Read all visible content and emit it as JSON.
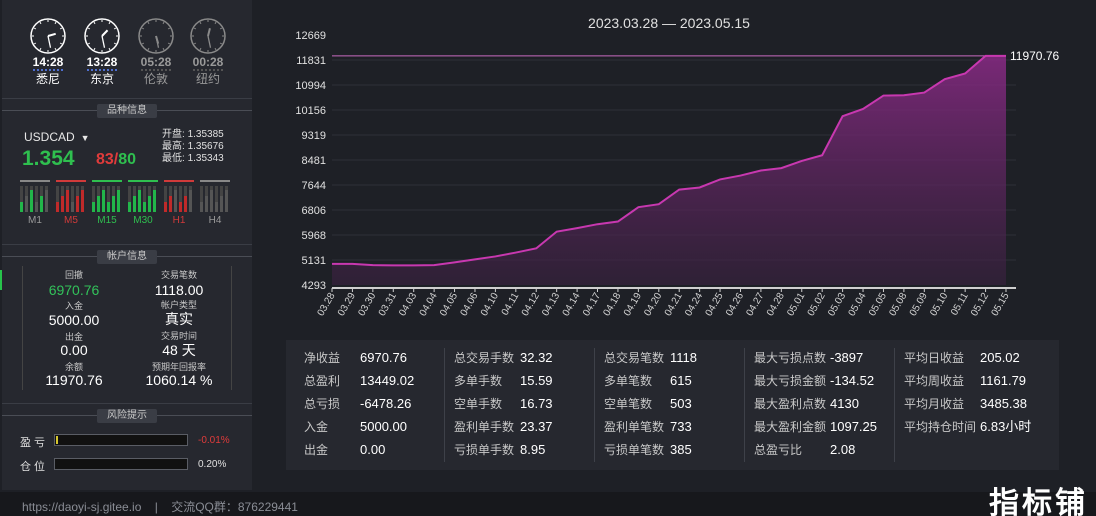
{
  "clocks": [
    {
      "time": "14:28",
      "city": "悉尼",
      "active": true
    },
    {
      "time": "13:28",
      "city": "东京",
      "active": true
    },
    {
      "time": "05:28",
      "city": "伦敦",
      "active": false
    },
    {
      "time": "00:28",
      "city": "纽约",
      "active": false
    }
  ],
  "sections": {
    "instrument": "品种信息",
    "account": "帐户信息",
    "risk": "风险提示"
  },
  "instrument": {
    "symbol": "USDCAD",
    "price_main": "1.354",
    "price_small_a": "83",
    "price_slash": "/",
    "price_small_b": "80",
    "open_label": "开盘:",
    "open": "1.35385",
    "high_label": "最高:",
    "high": "1.35676",
    "low_label": "最低:",
    "low": "1.35343",
    "timeframes": [
      {
        "label": "M1",
        "color": "#9a9a9a"
      },
      {
        "label": "M5",
        "color": "#d03a3a"
      },
      {
        "label": "M15",
        "color": "#2fbf4f"
      },
      {
        "label": "M30",
        "color": "#2fbf4f"
      },
      {
        "label": "H1",
        "color": "#d03a3a"
      },
      {
        "label": "H4",
        "color": "#9a9a9a"
      }
    ]
  },
  "account": {
    "drawdown_label": "回撤",
    "drawdown": "6970.76",
    "trades_label": "交易笔数",
    "trades": "1118.00",
    "deposit_label": "入金",
    "deposit": "5000.00",
    "type_label": "帐户类型",
    "type": "真实",
    "withdraw_label": "出金",
    "withdraw": "0.00",
    "time_label": "交易时间",
    "time": "48 天",
    "balance_label": "余额",
    "balance": "11970.76",
    "annual_label": "预期年回报率",
    "annual": "1060.14 %"
  },
  "risk": {
    "profit_label": "盈 亏",
    "profit_value": "-0.01%",
    "profit_color": "#e03b3b",
    "position_label": "仓 位",
    "position_value": "0.20%",
    "position_color": "#e0e0e0"
  },
  "chart_data": {
    "type": "area",
    "title": "2023.03.28 — 2023.05.15",
    "y_ticks": [
      "12669",
      "11831",
      "10994",
      "10156",
      "9319",
      "8481",
      "7644",
      "6806",
      "5968",
      "5131",
      "4293"
    ],
    "ylim": [
      4293,
      12669
    ],
    "last_value_label": "11970.76",
    "reference_line": 11970.76,
    "x_labels": [
      "03.28",
      "03.29",
      "03.30",
      "03.31",
      "04.03",
      "04.04",
      "04.05",
      "04.06",
      "04.10",
      "04.11",
      "04.12",
      "04.13",
      "04.14",
      "04.17",
      "04.18",
      "04.19",
      "04.20",
      "04.21",
      "04.24",
      "04.25",
      "04.26",
      "04.27",
      "04.28",
      "05.01",
      "05.02",
      "05.03",
      "05.04",
      "05.05",
      "05.08",
      "05.09",
      "05.10",
      "05.11",
      "05.12",
      "05.15"
    ],
    "series": [
      {
        "values": [
          5000,
          5000,
          4960,
          4950,
          4950,
          4960,
          5050,
          5150,
          5250,
          5380,
          5520,
          6080,
          6200,
          6330,
          6420,
          6900,
          7000,
          7490,
          7560,
          7830,
          7960,
          8130,
          8210,
          8450,
          8640,
          9950,
          10190,
          10640,
          10650,
          10740,
          11190,
          11380,
          11970,
          11970
        ]
      }
    ],
    "color": "#c838b0"
  },
  "stats": [
    [
      {
        "k": "净收益",
        "v": "6970.76"
      },
      {
        "k": "总盈利",
        "v": "13449.02"
      },
      {
        "k": "总亏损",
        "v": "-6478.26"
      },
      {
        "k": "入金",
        "v": "5000.00"
      },
      {
        "k": "出金",
        "v": "0.00"
      }
    ],
    [
      {
        "k": "总交易手数",
        "v": "32.32"
      },
      {
        "k": "多单手数",
        "v": "15.59"
      },
      {
        "k": "空单手数",
        "v": "16.73"
      },
      {
        "k": "盈利单手数",
        "v": "23.37"
      },
      {
        "k": "亏损单手数",
        "v": "8.95"
      }
    ],
    [
      {
        "k": "总交易笔数",
        "v": "1118"
      },
      {
        "k": "多单笔数",
        "v": "615"
      },
      {
        "k": "空单笔数",
        "v": "503"
      },
      {
        "k": "盈利单笔数",
        "v": "733"
      },
      {
        "k": "亏损单笔数",
        "v": "385"
      }
    ],
    [
      {
        "k": "最大亏损点数",
        "v": "-3897"
      },
      {
        "k": "最大亏损金额",
        "v": "-134.52"
      },
      {
        "k": "最大盈利点数",
        "v": "4130"
      },
      {
        "k": "最大盈利金额",
        "v": "1097.25"
      },
      {
        "k": "总盈亏比",
        "v": "2.08"
      }
    ],
    [
      {
        "k": "平均日收益",
        "v": "205.02"
      },
      {
        "k": "平均周收益",
        "v": "1161.79"
      },
      {
        "k": "平均月收益",
        "v": "3485.38"
      },
      {
        "k": "平均持仓时间",
        "v": "6.83小时"
      }
    ]
  ],
  "footer": {
    "url": "https://daoyi-sj.gitee.io",
    "sep": "|",
    "qq": "交流QQ群：876229441"
  },
  "watermark": "指标铺"
}
